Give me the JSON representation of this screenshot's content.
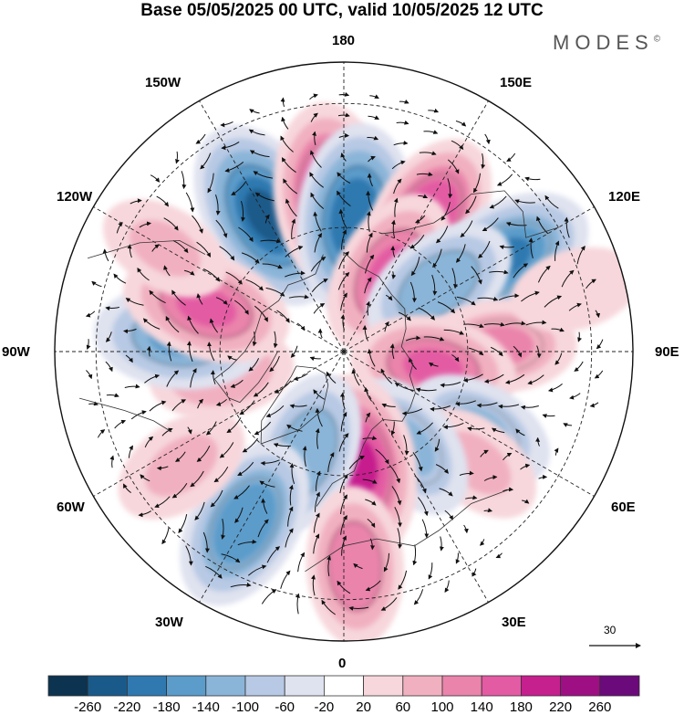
{
  "title": "Base 05/05/2025 00 UTC, valid 10/05/2025 12 UTC",
  "brand": "MODES",
  "brand_mark": "©",
  "longitude_labels": {
    "n180": "180",
    "w150": "150W",
    "e150": "150E",
    "w120": "120W",
    "e120": "120E",
    "w90": "90W",
    "e90": "90E",
    "w60": "60W",
    "e60": "60E",
    "w30": "30W",
    "e30": "30E",
    "s0": "0"
  },
  "reference_vector": {
    "label": "30"
  },
  "colorbar": {
    "ticks": [
      "-260",
      "-220",
      "-180",
      "-140",
      "-100",
      "-60",
      "-20",
      "20",
      "60",
      "100",
      "140",
      "180",
      "220",
      "260"
    ],
    "colors": [
      "#0c3350",
      "#1a5a8a",
      "#2f79b0",
      "#5b9ccb",
      "#8bb5d8",
      "#b7c9e4",
      "#dfe2ef",
      "#ffffff",
      "#f7d7dc",
      "#f1b0c0",
      "#ea84ab",
      "#e35ba3",
      "#c61f8e",
      "#9e0f84",
      "#6b0a7b"
    ]
  },
  "anomaly_centers": [
    {
      "lon": -150,
      "lat": 52,
      "value": -230
    },
    {
      "lon": -175,
      "lat": 52,
      "value": 200
    },
    {
      "lon": 175,
      "lat": 58,
      "value": -220
    },
    {
      "lon": 148,
      "lat": 52,
      "value": 170
    },
    {
      "lon": 150,
      "lat": 68,
      "value": 160
    },
    {
      "lon": 120,
      "lat": 45,
      "value": -190
    },
    {
      "lon": 125,
      "lat": 62,
      "value": -140
    },
    {
      "lon": 92,
      "lat": 52,
      "value": 110
    },
    {
      "lon": 80,
      "lat": 68,
      "value": 150
    },
    {
      "lon": 60,
      "lat": 52,
      "value": -110
    },
    {
      "lon": 50,
      "lat": 48,
      "value": 70
    },
    {
      "lon": 35,
      "lat": 62,
      "value": -110
    },
    {
      "lon": 8,
      "lat": 62,
      "value": 200
    },
    {
      "lon": -20,
      "lat": 64,
      "value": -140
    },
    {
      "lon": -30,
      "lat": 42,
      "value": -180
    },
    {
      "lon": 3,
      "lat": 38,
      "value": 130
    },
    {
      "lon": -55,
      "lat": 42,
      "value": 80
    },
    {
      "lon": -80,
      "lat": 60,
      "value": 90
    },
    {
      "lon": -95,
      "lat": 50,
      "value": -160
    },
    {
      "lon": -108,
      "lat": 55,
      "value": 160
    },
    {
      "lon": -120,
      "lat": 40,
      "value": 60
    },
    {
      "lon": 105,
      "lat": 32,
      "value": 50
    }
  ]
}
